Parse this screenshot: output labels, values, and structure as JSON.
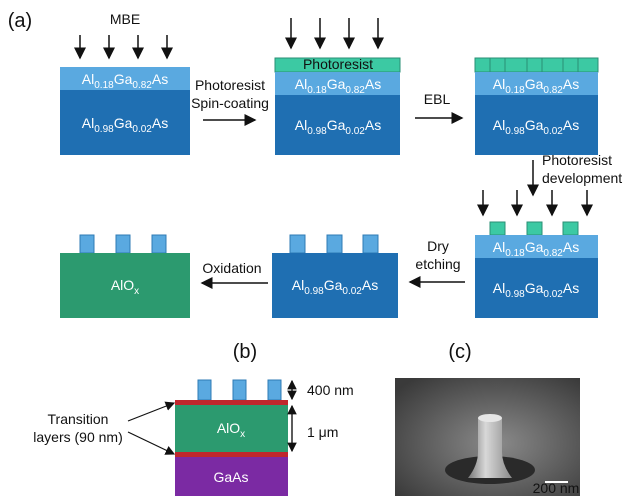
{
  "panel_a": {
    "label": "(a)",
    "source": "MBE",
    "photoresist": "Photoresist",
    "layer_top": {
      "el1": "Al",
      "x1": "0.18",
      "el2": "Ga",
      "x2": "0.82",
      "el3": "As"
    },
    "layer_bottom": {
      "el1": "Al",
      "x1": "0.98",
      "el2": "Ga",
      "x2": "0.02",
      "el3": "As"
    },
    "oxide": {
      "base": "AlO",
      "sub": "x"
    },
    "steps": {
      "spin_coating": [
        "Photoresist",
        "Spin-coating"
      ],
      "ebl": "EBL",
      "development": [
        "Photoresist",
        "development"
      ],
      "etching": [
        "Dry",
        "etching"
      ],
      "oxidation": "Oxidation"
    }
  },
  "panel_b": {
    "label": "(b)",
    "pillar_height": "400 nm",
    "oxide_thickness": "1 μm",
    "transition": [
      "Transition",
      "layers (90 nm)"
    ],
    "oxide": {
      "base": "AlO",
      "sub": "x"
    },
    "substrate": "GaAs"
  },
  "panel_c": {
    "label": "(c)",
    "scale_bar": "200 nm"
  }
}
